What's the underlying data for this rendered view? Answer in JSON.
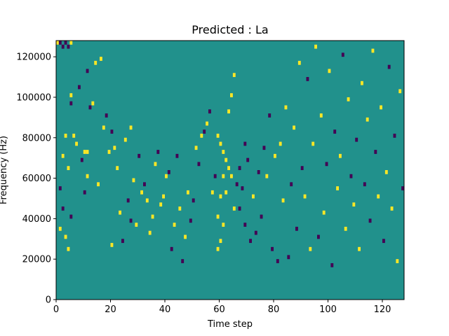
{
  "chart_data": {
    "type": "heatmap",
    "title": "Predicted : La",
    "xlabel": "Time step",
    "ylabel": "Frequency (Hz)",
    "xlim": [
      0,
      128
    ],
    "ylim": [
      0,
      128000
    ],
    "x_ticks": [
      0,
      20,
      40,
      60,
      80,
      100,
      120
    ],
    "x_tick_labels": [
      "0",
      "20",
      "40",
      "60",
      "80",
      "100",
      "120"
    ],
    "y_ticks": [
      0,
      20000,
      40000,
      60000,
      80000,
      100000,
      120000
    ],
    "y_tick_labels": [
      "0",
      "20000",
      "40000",
      "60000",
      "80000",
      "100000",
      "120000"
    ],
    "grid_shape": {
      "time_steps": 128,
      "frequency_bins": 64,
      "bin_width_hz": 2000
    },
    "colormap": "viridis",
    "colors": {
      "background": "#21918c",
      "high": "#fde725",
      "low": "#440154"
    },
    "background_value": 0,
    "cells": [
      {
        "t": 0,
        "f": 63,
        "v": 1
      },
      {
        "t": 1,
        "f": 63,
        "v": -1
      },
      {
        "t": 2,
        "f": 62,
        "v": -1
      },
      {
        "t": 3,
        "f": 63,
        "v": -1
      },
      {
        "t": 4,
        "f": 62,
        "v": -1
      },
      {
        "t": 5,
        "f": 63,
        "v": 1
      },
      {
        "t": 5,
        "f": 48,
        "v": -1
      },
      {
        "t": 3,
        "f": 40,
        "v": 1
      },
      {
        "t": 4,
        "f": 32,
        "v": 1
      },
      {
        "t": 2,
        "f": 35,
        "v": 1
      },
      {
        "t": 1,
        "f": 27,
        "v": -1
      },
      {
        "t": 2,
        "f": 22,
        "v": -1
      },
      {
        "t": 1,
        "f": 17,
        "v": 1
      },
      {
        "t": 3,
        "f": 15,
        "v": 1
      },
      {
        "t": 4,
        "f": 12,
        "v": 1
      },
      {
        "t": 5,
        "f": 50,
        "v": 1
      },
      {
        "t": 5,
        "f": 20,
        "v": -1
      },
      {
        "t": 6,
        "f": 40,
        "v": 1
      },
      {
        "t": 7,
        "f": 38,
        "v": 1
      },
      {
        "t": 8,
        "f": 52,
        "v": -1
      },
      {
        "t": 9,
        "f": 34,
        "v": -1
      },
      {
        "t": 10,
        "f": 36,
        "v": 1
      },
      {
        "t": 10,
        "f": 26,
        "v": -1
      },
      {
        "t": 11,
        "f": 30,
        "v": 1
      },
      {
        "t": 11,
        "f": 36,
        "v": 1
      },
      {
        "t": 11,
        "f": 56,
        "v": -1
      },
      {
        "t": 12,
        "f": 47,
        "v": -1
      },
      {
        "t": 13,
        "f": 48,
        "v": 1
      },
      {
        "t": 14,
        "f": 58,
        "v": 1
      },
      {
        "t": 15,
        "f": 28,
        "v": 1
      },
      {
        "t": 16,
        "f": 59,
        "v": 1
      },
      {
        "t": 17,
        "f": 42,
        "v": 1
      },
      {
        "t": 18,
        "f": 45,
        "v": -1
      },
      {
        "t": 19,
        "f": 36,
        "v": 1
      },
      {
        "t": 20,
        "f": 41,
        "v": -1
      },
      {
        "t": 20,
        "f": 13,
        "v": 1
      },
      {
        "t": 21,
        "f": 37,
        "v": 1
      },
      {
        "t": 22,
        "f": 32,
        "v": 1
      },
      {
        "t": 23,
        "f": 21,
        "v": 1
      },
      {
        "t": 24,
        "f": 14,
        "v": -1
      },
      {
        "t": 25,
        "f": 39,
        "v": 1
      },
      {
        "t": 26,
        "f": 24,
        "v": -1
      },
      {
        "t": 27,
        "f": 19,
        "v": -1
      },
      {
        "t": 27,
        "f": 42,
        "v": 1
      },
      {
        "t": 28,
        "f": 29,
        "v": 1
      },
      {
        "t": 29,
        "f": 18,
        "v": 1
      },
      {
        "t": 30,
        "f": 35,
        "v": -1
      },
      {
        "t": 31,
        "f": 26,
        "v": 1
      },
      {
        "t": 32,
        "f": 28,
        "v": -1
      },
      {
        "t": 33,
        "f": 24,
        "v": 1
      },
      {
        "t": 34,
        "f": 16,
        "v": 1
      },
      {
        "t": 35,
        "f": 20,
        "v": 1
      },
      {
        "t": 36,
        "f": 33,
        "v": 1
      },
      {
        "t": 37,
        "f": 36,
        "v": -1
      },
      {
        "t": 38,
        "f": 23,
        "v": 1
      },
      {
        "t": 39,
        "f": 25,
        "v": 1
      },
      {
        "t": 40,
        "f": 30,
        "v": 1
      },
      {
        "t": 41,
        "f": 31,
        "v": -1
      },
      {
        "t": 42,
        "f": 12,
        "v": -1
      },
      {
        "t": 43,
        "f": 18,
        "v": 1
      },
      {
        "t": 44,
        "f": 35,
        "v": -1
      },
      {
        "t": 45,
        "f": 22,
        "v": 1
      },
      {
        "t": 46,
        "f": 9,
        "v": -1
      },
      {
        "t": 47,
        "f": 15,
        "v": 1
      },
      {
        "t": 48,
        "f": 26,
        "v": 1
      },
      {
        "t": 49,
        "f": 19,
        "v": -1
      },
      {
        "t": 50,
        "f": 24,
        "v": -1
      },
      {
        "t": 51,
        "f": 37,
        "v": 1
      },
      {
        "t": 52,
        "f": 33,
        "v": -1
      },
      {
        "t": 53,
        "f": 40,
        "v": 1
      },
      {
        "t": 54,
        "f": 41,
        "v": -1
      },
      {
        "t": 55,
        "f": 43,
        "v": 1
      },
      {
        "t": 56,
        "f": 46,
        "v": -1
      },
      {
        "t": 57,
        "f": 26,
        "v": 1
      },
      {
        "t": 58,
        "f": 30,
        "v": -1
      },
      {
        "t": 59,
        "f": 40,
        "v": 1
      },
      {
        "t": 59,
        "f": 20,
        "v": 1
      },
      {
        "t": 59,
        "f": 12,
        "v": 1
      },
      {
        "t": 60,
        "f": 38,
        "v": 1
      },
      {
        "t": 60,
        "f": 25,
        "v": 1
      },
      {
        "t": 60,
        "f": 14,
        "v": 1
      },
      {
        "t": 61,
        "f": 36,
        "v": 1
      },
      {
        "t": 61,
        "f": 30,
        "v": 1
      },
      {
        "t": 61,
        "f": 18,
        "v": 1
      },
      {
        "t": 62,
        "f": 34,
        "v": 1
      },
      {
        "t": 62,
        "f": 26,
        "v": 1
      },
      {
        "t": 63,
        "f": 32,
        "v": 1
      },
      {
        "t": 63,
        "f": 46,
        "v": 1
      },
      {
        "t": 64,
        "f": 50,
        "v": 1
      },
      {
        "t": 64,
        "f": 30,
        "v": 1
      },
      {
        "t": 65,
        "f": 55,
        "v": 1
      },
      {
        "t": 65,
        "f": 22,
        "v": 1
      },
      {
        "t": 66,
        "f": 28,
        "v": -1
      },
      {
        "t": 67,
        "f": 22,
        "v": -1
      },
      {
        "t": 67,
        "f": 32,
        "v": -1
      },
      {
        "t": 68,
        "f": 27,
        "v": -1
      },
      {
        "t": 69,
        "f": 38,
        "v": -1
      },
      {
        "t": 69,
        "f": 18,
        "v": -1
      },
      {
        "t": 70,
        "f": 34,
        "v": -1
      },
      {
        "t": 71,
        "f": 14,
        "v": -1
      },
      {
        "t": 72,
        "f": 25,
        "v": 1
      },
      {
        "t": 73,
        "f": 16,
        "v": -1
      },
      {
        "t": 74,
        "f": 31,
        "v": -1
      },
      {
        "t": 75,
        "f": 20,
        "v": -1
      },
      {
        "t": 76,
        "f": 37,
        "v": -1
      },
      {
        "t": 77,
        "f": 30,
        "v": 1
      },
      {
        "t": 78,
        "f": 45,
        "v": -1
      },
      {
        "t": 79,
        "f": 12,
        "v": -1
      },
      {
        "t": 80,
        "f": 35,
        "v": 1
      },
      {
        "t": 81,
        "f": 9,
        "v": -1
      },
      {
        "t": 82,
        "f": 38,
        "v": 1
      },
      {
        "t": 83,
        "f": 24,
        "v": 1
      },
      {
        "t": 84,
        "f": 47,
        "v": 1
      },
      {
        "t": 85,
        "f": 10,
        "v": -1
      },
      {
        "t": 86,
        "f": 28,
        "v": -1
      },
      {
        "t": 87,
        "f": 42,
        "v": 1
      },
      {
        "t": 88,
        "f": 17,
        "v": -1
      },
      {
        "t": 89,
        "f": 58,
        "v": 1
      },
      {
        "t": 90,
        "f": 32,
        "v": -1
      },
      {
        "t": 91,
        "f": 25,
        "v": 1
      },
      {
        "t": 92,
        "f": 54,
        "v": -1
      },
      {
        "t": 93,
        "f": 12,
        "v": 1
      },
      {
        "t": 94,
        "f": 38,
        "v": 1
      },
      {
        "t": 95,
        "f": 62,
        "v": 1
      },
      {
        "t": 96,
        "f": 15,
        "v": -1
      },
      {
        "t": 97,
        "f": 45,
        "v": 1
      },
      {
        "t": 98,
        "f": 21,
        "v": 1
      },
      {
        "t": 99,
        "f": 33,
        "v": -1
      },
      {
        "t": 100,
        "f": 56,
        "v": 1
      },
      {
        "t": 101,
        "f": 8,
        "v": -1
      },
      {
        "t": 102,
        "f": 41,
        "v": -1
      },
      {
        "t": 103,
        "f": 27,
        "v": 1
      },
      {
        "t": 104,
        "f": 35,
        "v": 1
      },
      {
        "t": 105,
        "f": 60,
        "v": -1
      },
      {
        "t": 106,
        "f": 17,
        "v": 1
      },
      {
        "t": 107,
        "f": 49,
        "v": 1
      },
      {
        "t": 108,
        "f": 30,
        "v": -1
      },
      {
        "t": 109,
        "f": 23,
        "v": 1
      },
      {
        "t": 110,
        "f": 39,
        "v": -1
      },
      {
        "t": 111,
        "f": 12,
        "v": 1
      },
      {
        "t": 112,
        "f": 53,
        "v": 1
      },
      {
        "t": 113,
        "f": 28,
        "v": -1
      },
      {
        "t": 114,
        "f": 44,
        "v": 1
      },
      {
        "t": 115,
        "f": 19,
        "v": -1
      },
      {
        "t": 116,
        "f": 61,
        "v": 1
      },
      {
        "t": 117,
        "f": 36,
        "v": -1
      },
      {
        "t": 118,
        "f": 25,
        "v": 1
      },
      {
        "t": 119,
        "f": 47,
        "v": 1
      },
      {
        "t": 120,
        "f": 14,
        "v": -1
      },
      {
        "t": 121,
        "f": 31,
        "v": 1
      },
      {
        "t": 122,
        "f": 57,
        "v": -1
      },
      {
        "t": 123,
        "f": 22,
        "v": 1
      },
      {
        "t": 124,
        "f": 40,
        "v": -1
      },
      {
        "t": 125,
        "f": 9,
        "v": 1
      },
      {
        "t": 126,
        "f": 51,
        "v": 1
      },
      {
        "t": 127,
        "f": 27,
        "v": -1
      }
    ]
  }
}
